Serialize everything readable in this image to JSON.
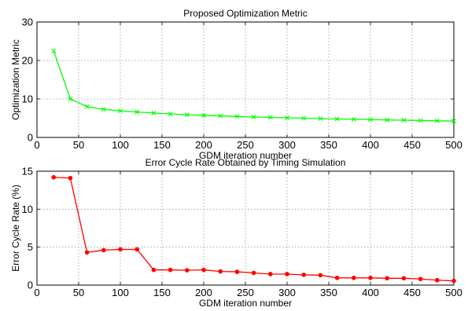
{
  "chart_data": [
    {
      "type": "line",
      "title": "Proposed Optimization Metric",
      "xlabel": "GDM iteration number",
      "ylabel": "Optimization Metric",
      "xlim": [
        0,
        500
      ],
      "ylim": [
        0,
        30
      ],
      "xticks": [
        0,
        50,
        100,
        150,
        200,
        250,
        300,
        350,
        400,
        450,
        500
      ],
      "yticks": [
        0,
        10,
        20,
        30
      ],
      "grid": true,
      "series": [
        {
          "color": "#00ff00",
          "marker": "x",
          "x": [
            20,
            40,
            60,
            80,
            100,
            120,
            140,
            160,
            180,
            200,
            220,
            240,
            260,
            280,
            300,
            320,
            340,
            360,
            380,
            400,
            420,
            440,
            460,
            480,
            500
          ],
          "y": [
            22.5,
            10.0,
            8.0,
            7.3,
            6.9,
            6.6,
            6.35,
            6.1,
            5.9,
            5.75,
            5.6,
            5.45,
            5.3,
            5.2,
            5.1,
            5.0,
            4.9,
            4.8,
            4.72,
            4.65,
            4.55,
            4.48,
            4.4,
            4.32,
            4.25
          ]
        }
      ]
    },
    {
      "type": "line",
      "title": "Error Cycle Rate Obtained by Timing Simulation",
      "xlabel": "GDM iteration number",
      "ylabel": "Error Cycle Rate (%)",
      "xlim": [
        0,
        500
      ],
      "ylim": [
        0,
        15
      ],
      "xticks": [
        0,
        50,
        100,
        150,
        200,
        250,
        300,
        350,
        400,
        450,
        500
      ],
      "yticks": [
        0,
        5,
        10,
        15
      ],
      "grid": true,
      "series": [
        {
          "color": "#ff0000",
          "marker": "dot",
          "x": [
            20,
            40,
            60,
            80,
            100,
            120,
            140,
            160,
            180,
            200,
            220,
            240,
            260,
            280,
            300,
            320,
            340,
            360,
            380,
            400,
            420,
            440,
            460,
            480,
            500
          ],
          "y": [
            14.2,
            14.1,
            4.3,
            4.6,
            4.7,
            4.7,
            2.0,
            2.0,
            1.95,
            2.0,
            1.8,
            1.75,
            1.6,
            1.45,
            1.45,
            1.35,
            1.3,
            0.95,
            0.95,
            0.95,
            0.9,
            0.9,
            0.8,
            0.65,
            0.55
          ]
        }
      ]
    }
  ]
}
